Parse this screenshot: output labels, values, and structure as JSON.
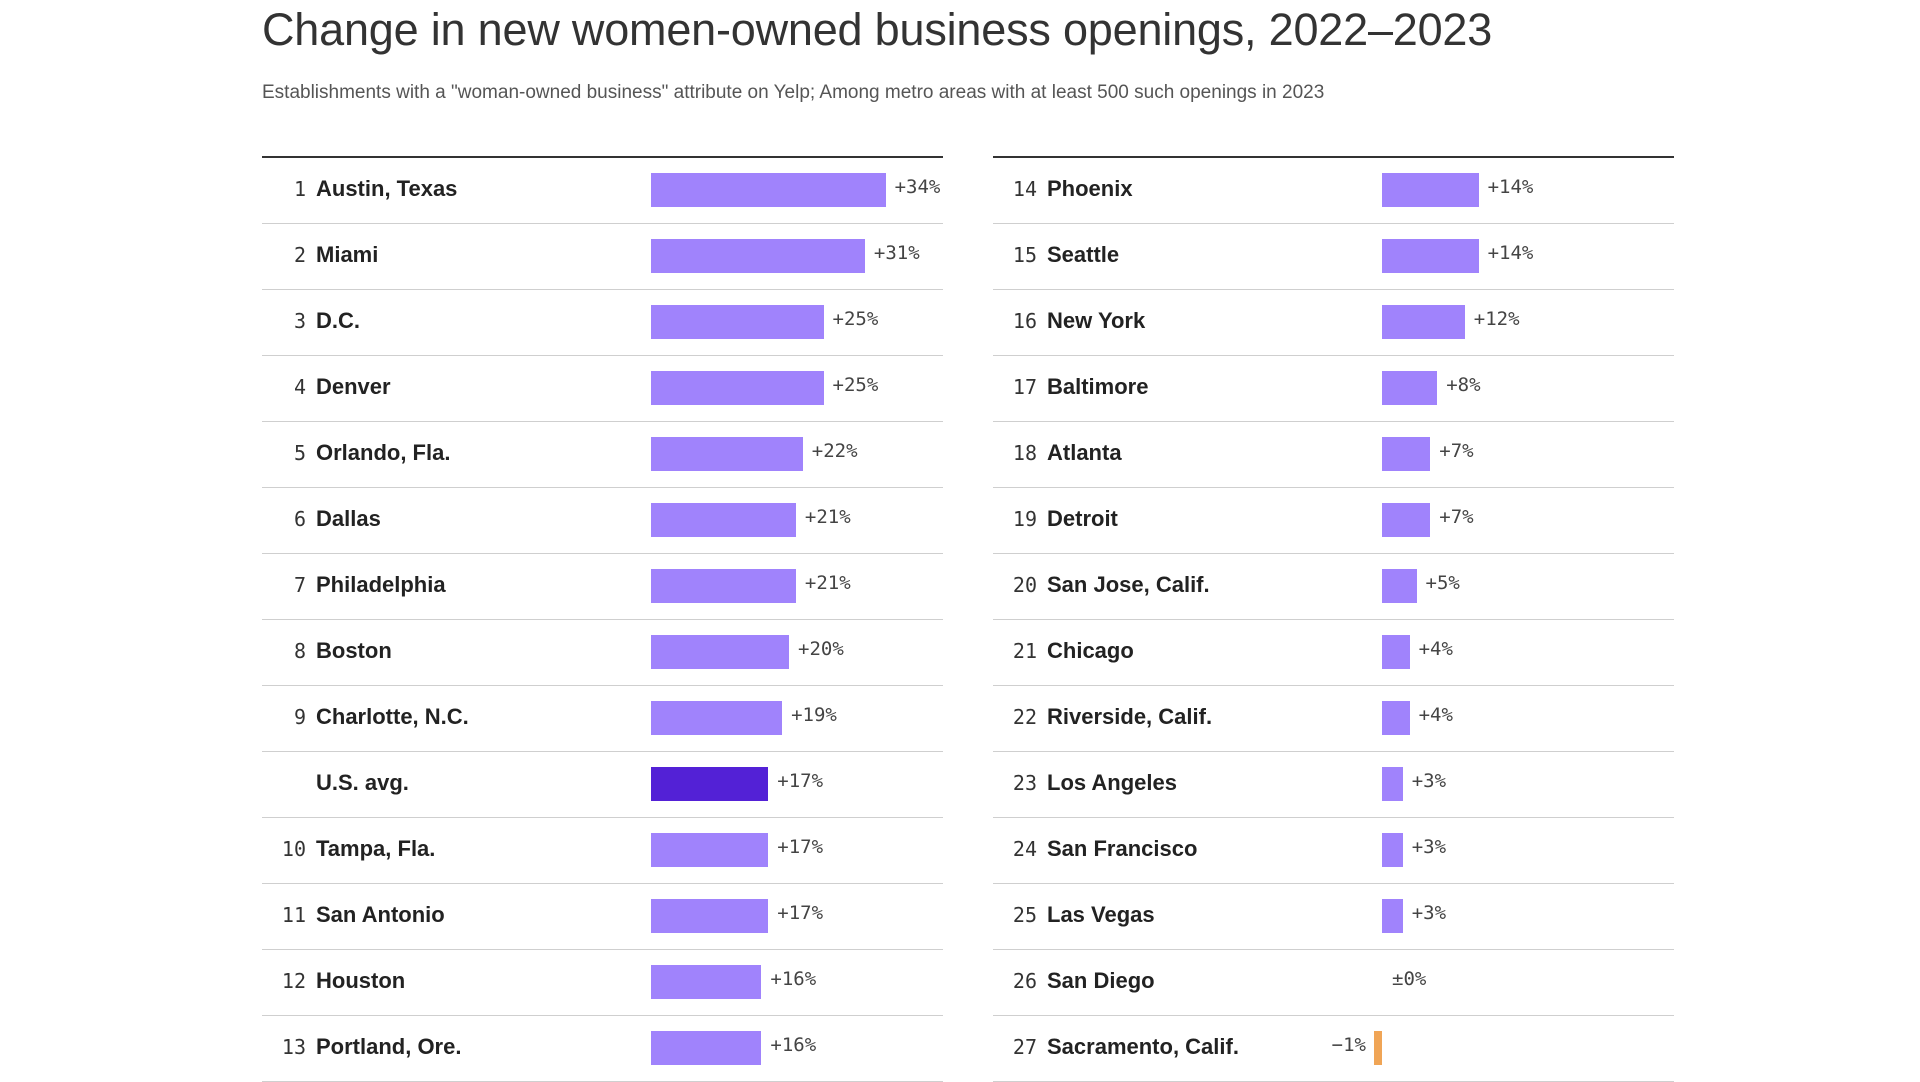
{
  "chart_data": {
    "type": "bar",
    "title": "Change in new women-owned business openings, 2022–2023",
    "subtitle": "Establishments with a \"woman-owned business\" attribute on Yelp; Among metro areas with at least 500 such openings in 2023",
    "xlabel": "",
    "ylabel": "",
    "unit": "%",
    "xlim": [
      -1,
      34
    ],
    "colors": {
      "positive": "#a083fc",
      "average": "#5321d6",
      "negative": "#f0a556"
    },
    "rows": [
      {
        "rank": "1",
        "label": "Austin, Texas",
        "value": 34,
        "value_label": "+34%",
        "kind": "positive"
      },
      {
        "rank": "2",
        "label": "Miami",
        "value": 31,
        "value_label": "+31%",
        "kind": "positive"
      },
      {
        "rank": "3",
        "label": "D.C.",
        "value": 25,
        "value_label": "+25%",
        "kind": "positive"
      },
      {
        "rank": "4",
        "label": "Denver",
        "value": 25,
        "value_label": "+25%",
        "kind": "positive"
      },
      {
        "rank": "5",
        "label": "Orlando, Fla.",
        "value": 22,
        "value_label": "+22%",
        "kind": "positive"
      },
      {
        "rank": "6",
        "label": "Dallas",
        "value": 21,
        "value_label": "+21%",
        "kind": "positive"
      },
      {
        "rank": "7",
        "label": "Philadelphia",
        "value": 21,
        "value_label": "+21%",
        "kind": "positive"
      },
      {
        "rank": "8",
        "label": "Boston",
        "value": 20,
        "value_label": "+20%",
        "kind": "positive"
      },
      {
        "rank": "9",
        "label": "Charlotte, N.C.",
        "value": 19,
        "value_label": "+19%",
        "kind": "positive"
      },
      {
        "rank": "",
        "label": "U.S. avg.",
        "value": 17,
        "value_label": "+17%",
        "kind": "average"
      },
      {
        "rank": "10",
        "label": "Tampa, Fla.",
        "value": 17,
        "value_label": "+17%",
        "kind": "positive"
      },
      {
        "rank": "11",
        "label": "San Antonio",
        "value": 17,
        "value_label": "+17%",
        "kind": "positive"
      },
      {
        "rank": "12",
        "label": "Houston",
        "value": 16,
        "value_label": "+16%",
        "kind": "positive"
      },
      {
        "rank": "13",
        "label": "Portland, Ore.",
        "value": 16,
        "value_label": "+16%",
        "kind": "positive"
      },
      {
        "rank": "14",
        "label": "Phoenix",
        "value": 14,
        "value_label": "+14%",
        "kind": "positive"
      },
      {
        "rank": "15",
        "label": "Seattle",
        "value": 14,
        "value_label": "+14%",
        "kind": "positive"
      },
      {
        "rank": "16",
        "label": "New York",
        "value": 12,
        "value_label": "+12%",
        "kind": "positive"
      },
      {
        "rank": "17",
        "label": "Baltimore",
        "value": 8,
        "value_label": "+8%",
        "kind": "positive"
      },
      {
        "rank": "18",
        "label": "Atlanta",
        "value": 7,
        "value_label": "+7%",
        "kind": "positive"
      },
      {
        "rank": "19",
        "label": "Detroit",
        "value": 7,
        "value_label": "+7%",
        "kind": "positive"
      },
      {
        "rank": "20",
        "label": "San Jose, Calif.",
        "value": 5,
        "value_label": "+5%",
        "kind": "positive"
      },
      {
        "rank": "21",
        "label": "Chicago",
        "value": 4,
        "value_label": "+4%",
        "kind": "positive"
      },
      {
        "rank": "22",
        "label": "Riverside, Calif.",
        "value": 4,
        "value_label": "+4%",
        "kind": "positive"
      },
      {
        "rank": "23",
        "label": "Los Angeles",
        "value": 3,
        "value_label": "+3%",
        "kind": "positive"
      },
      {
        "rank": "24",
        "label": "San Francisco",
        "value": 3,
        "value_label": "+3%",
        "kind": "positive"
      },
      {
        "rank": "25",
        "label": "Las Vegas",
        "value": 3,
        "value_label": "+3%",
        "kind": "positive"
      },
      {
        "rank": "26",
        "label": "San Diego",
        "value": 0,
        "value_label": "±0%",
        "kind": "zero"
      },
      {
        "rank": "27",
        "label": "Sacramento, Calif.",
        "value": -1,
        "value_label": "−1%",
        "kind": "negative"
      }
    ]
  }
}
